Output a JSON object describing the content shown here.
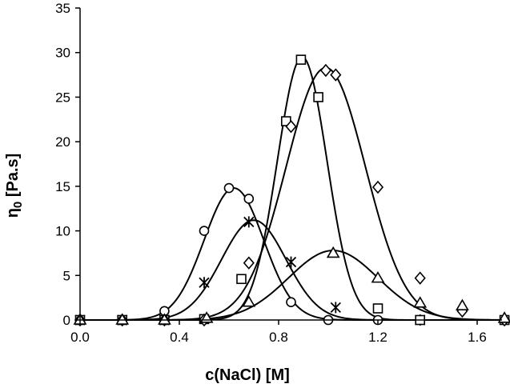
{
  "chart_data": {
    "type": "scatter",
    "xlabel": "c(NaCl)  [M]",
    "ylabel": "η",
    "ylabel_sub": "0",
    "ylabel_suffix": " [Pa.s]",
    "xlim": [
      0.0,
      1.7
    ],
    "ylim": [
      0,
      35
    ],
    "x_ticks": [
      "0.0",
      "0.4",
      "0.8",
      "1.2",
      "1.6"
    ],
    "x_tick_values": [
      0.0,
      0.4,
      0.8,
      1.2,
      1.6
    ],
    "y_ticks": [
      "0",
      "5",
      "10",
      "15",
      "20",
      "25",
      "30",
      "35"
    ],
    "y_tick_values": [
      0,
      5,
      10,
      15,
      20,
      25,
      30,
      35
    ],
    "grid": false,
    "series": [
      {
        "marker": "circle",
        "points": [
          [
            0,
            0
          ],
          [
            0.17,
            0
          ],
          [
            0.34,
            1.0
          ],
          [
            0.5,
            10.0
          ],
          [
            0.6,
            14.8
          ],
          [
            0.68,
            13.6
          ],
          [
            0.85,
            2.0
          ],
          [
            1.0,
            0
          ],
          [
            1.2,
            0
          ]
        ],
        "fit": {
          "peak": 14.8,
          "center": 0.62,
          "width": 0.12
        }
      },
      {
        "marker": "asterisk",
        "points": [
          [
            0,
            0
          ],
          [
            0.17,
            0
          ],
          [
            0.34,
            0
          ],
          [
            0.5,
            4.2
          ],
          [
            0.68,
            11.0
          ],
          [
            0.85,
            6.5
          ],
          [
            1.03,
            1.4
          ],
          [
            1.37,
            0
          ]
        ],
        "fit": {
          "peak": 11.2,
          "center": 0.7,
          "width": 0.13
        }
      },
      {
        "marker": "square",
        "points": [
          [
            0,
            0
          ],
          [
            0.17,
            0
          ],
          [
            0.34,
            0
          ],
          [
            0.5,
            0.1
          ],
          [
            0.65,
            4.6
          ],
          [
            0.83,
            22.3
          ],
          [
            0.89,
            29.2
          ],
          [
            0.96,
            25.0
          ],
          [
            1.2,
            1.3
          ],
          [
            1.37,
            0
          ],
          [
            1.71,
            0
          ]
        ],
        "fit": {
          "peak": 29.5,
          "center": 0.895,
          "width": 0.1
        }
      },
      {
        "marker": "diamond",
        "points": [
          [
            0,
            0
          ],
          [
            0.17,
            0
          ],
          [
            0.34,
            0
          ],
          [
            0.5,
            0
          ],
          [
            0.68,
            6.4
          ],
          [
            0.85,
            21.7
          ],
          [
            0.99,
            28.0
          ],
          [
            1.03,
            27.5
          ],
          [
            1.2,
            14.9
          ],
          [
            1.37,
            4.7
          ],
          [
            1.54,
            1.0
          ],
          [
            1.71,
            0
          ]
        ],
        "fit": {
          "peak": 28.3,
          "center": 0.99,
          "width": 0.16
        }
      },
      {
        "marker": "triangle",
        "points": [
          [
            0,
            0
          ],
          [
            0.17,
            0
          ],
          [
            0.34,
            0
          ],
          [
            0.51,
            0.2
          ],
          [
            0.68,
            2.0
          ],
          [
            1.02,
            7.5
          ],
          [
            1.2,
            4.7
          ],
          [
            1.37,
            1.9
          ],
          [
            1.54,
            1.6
          ],
          [
            1.71,
            0.2
          ]
        ],
        "fit": {
          "peak": 7.8,
          "center": 1.02,
          "width": 0.18
        }
      }
    ]
  }
}
